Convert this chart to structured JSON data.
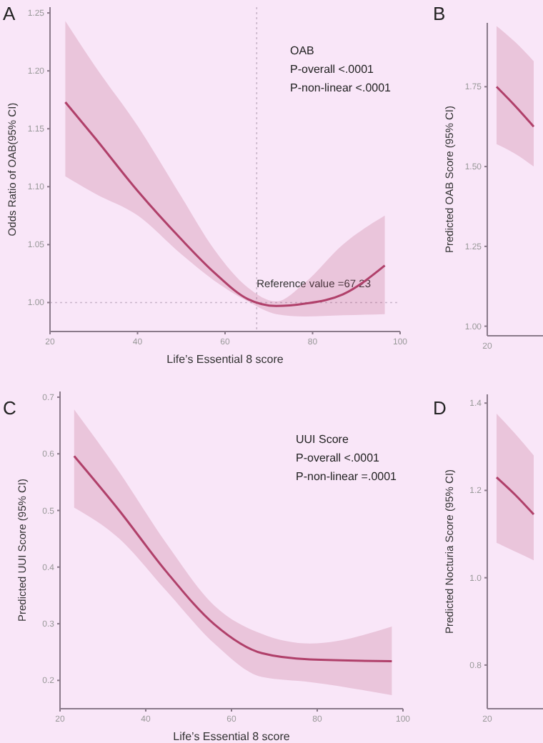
{
  "chart_data": [
    {
      "type": "line",
      "title": "A",
      "xlabel": "Life’s Essential 8 score",
      "ylabel": "Odds Ratio of OAB(95% CI)",
      "xlim": [
        20,
        100
      ],
      "ylim": [
        0.975,
        1.255
      ],
      "xticks": [
        20,
        40,
        60,
        80,
        100
      ],
      "yticks": [
        {
          "value": 1,
          "label": "1.00"
        },
        {
          "value": 1.05,
          "label": "1.05"
        },
        {
          "value": 1.1,
          "label": "1.10"
        },
        {
          "value": 1.15,
          "label": "1.15"
        },
        {
          "value": 1.2,
          "label": "1.20"
        },
        {
          "value": 1.25,
          "label": "1.25"
        }
      ],
      "series": [
        {
          "color": "#b0406a",
          "x": [
            23.5,
            30.3,
            40.1,
            49.9,
            57.5,
            65.2,
            71.7,
            78.2,
            86.9,
            96.5
          ],
          "values": [
            1.173,
            1.142,
            1.096,
            1.055,
            1.026,
            1.003,
            0.997,
            0.999,
            1.007,
            1.032
          ],
          "lower": [
            1.109,
            1.094,
            1.075,
            1.042,
            1.019,
            1.001,
            0.99,
            0.988,
            0.989,
            0.99
          ],
          "upper": [
            1.243,
            1.204,
            1.152,
            1.092,
            1.046,
            1.013,
            1.001,
            1.017,
            1.05,
            1.075
          ]
        }
      ],
      "ref_lines": [
        {
          "axis": "x",
          "value": 67.23,
          "label": "Reference value =67.23",
          "line_style": "dotted"
        },
        {
          "axis": "y",
          "value": 1,
          "line_style": "dotted"
        }
      ],
      "annotations": [
        "OAB",
        "P-overall <.0001",
        "P-non-linear <.0001"
      ]
    },
    {
      "type": "line",
      "title": "B",
      "ylabel": "Predicted OAB Score (95% CI)",
      "categories": [
        null,
        null,
        null
      ],
      "ylim": [
        0.97,
        1.95
      ],
      "yticks": [
        {
          "value": 1,
          "label": "1.00"
        },
        {
          "value": 1.25,
          "label": "1.25"
        },
        {
          "value": 1.5,
          "label": "1.50"
        },
        {
          "value": 1.75,
          "label": "1.75"
        }
      ],
      "series": [
        {
          "color": "#b0406a",
          "values": [
            1.75,
            1.69,
            1.625
          ],
          "lower": [
            1.57,
            1.54,
            1.5
          ],
          "upper": [
            1.94,
            1.89,
            1.83
          ]
        }
      ],
      "annotations": [
        "20"
      ]
    },
    {
      "type": "line",
      "title": "C",
      "xlabel": "Life’s Essential 8 score",
      "ylabel": "Predicted UUI Score (95% CI)",
      "xlim": [
        20,
        100
      ],
      "ylim": [
        0.15,
        0.71
      ],
      "xticks": [
        20,
        40,
        60,
        80,
        100
      ],
      "yticks": [
        0.2,
        0.3,
        0.4,
        0.5,
        0.6,
        0.7
      ],
      "series": [
        {
          "color": "#b0406a",
          "x": [
            23.3,
            33.7,
            44.8,
            56,
            67.1,
            78.3,
            97.4
          ],
          "values": [
            0.596,
            0.501,
            0.392,
            0.299,
            0.248,
            0.237,
            0.234
          ],
          "lower": [
            0.505,
            0.451,
            0.358,
            0.265,
            0.206,
            0.197,
            0.174
          ],
          "upper": [
            0.678,
            0.569,
            0.442,
            0.332,
            0.282,
            0.265,
            0.295
          ]
        }
      ],
      "annotations": [
        "UUI Score",
        "P-overall <.0001",
        "P-non-linear =.0001"
      ]
    },
    {
      "type": "line",
      "title": "D",
      "ylabel": "Predicted Nocturia Score (95% CI)",
      "categories": [
        null,
        null,
        null
      ],
      "ylim": [
        0.7,
        1.42
      ],
      "yticks": [
        0.8,
        {
          "value": 1,
          "label": "1.0"
        },
        1.2,
        1.4
      ],
      "series": [
        {
          "color": "#b0406a",
          "values": [
            1.23,
            1.19,
            1.145
          ],
          "lower": [
            1.08,
            1.06,
            1.04
          ],
          "upper": [
            1.376,
            1.33,
            1.28
          ]
        }
      ],
      "annotations": [
        "20"
      ]
    }
  ]
}
